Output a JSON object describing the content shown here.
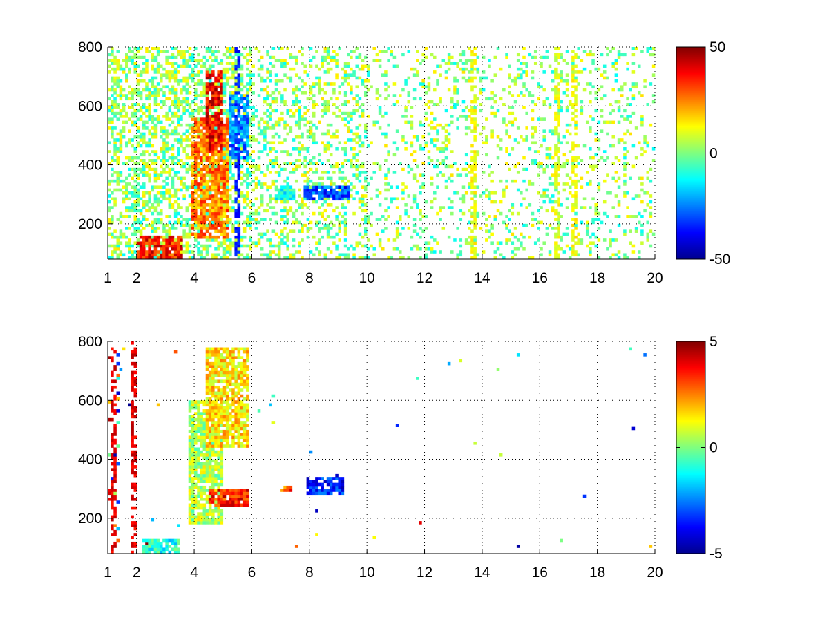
{
  "chart_data": [
    {
      "type": "heatmap",
      "title": "",
      "xlabel": "",
      "ylabel": "",
      "xlim": [
        1,
        20
      ],
      "ylim": [
        80,
        800
      ],
      "x_ticks": [
        1,
        2,
        4,
        6,
        8,
        10,
        12,
        14,
        16,
        18,
        20
      ],
      "y_ticks": [
        200,
        400,
        600,
        800
      ],
      "grid": true,
      "colormap": "jet",
      "colorbar": {
        "range": [
          -50,
          50
        ],
        "ticks": [
          50,
          0,
          -50
        ]
      },
      "missing_values_color": "#ffffff",
      "features": [
        {
          "kind": "blob",
          "x": [
            2.0,
            3.6
          ],
          "y": [
            80,
            160
          ],
          "value": 35
        },
        {
          "kind": "blob",
          "x": [
            3.9,
            5.2
          ],
          "y": [
            150,
            560
          ],
          "value": 25
        },
        {
          "kind": "blob",
          "x": [
            4.4,
            5.0
          ],
          "y": [
            440,
            720
          ],
          "value": 38
        },
        {
          "kind": "blob",
          "x": [
            5.2,
            5.9
          ],
          "y": [
            420,
            640
          ],
          "value": -25
        },
        {
          "kind": "blob",
          "x": [
            7.8,
            9.4
          ],
          "y": [
            280,
            330
          ],
          "value": -30
        },
        {
          "kind": "blob",
          "x": [
            6.8,
            7.5
          ],
          "y": [
            280,
            330
          ],
          "value": -10
        },
        {
          "kind": "stripe",
          "x": 13.7,
          "value": 12
        },
        {
          "kind": "stripe",
          "x": 16.6,
          "value": 10
        },
        {
          "kind": "stripe",
          "x": 17.2,
          "value": 12
        },
        {
          "kind": "stripe",
          "x": 5.5,
          "value": -35
        }
      ]
    },
    {
      "type": "heatmap",
      "title": "",
      "xlabel": "",
      "ylabel": "",
      "xlim": [
        1,
        20
      ],
      "ylim": [
        80,
        800
      ],
      "x_ticks": [
        1,
        2,
        4,
        6,
        8,
        10,
        12,
        14,
        16,
        18,
        20
      ],
      "y_ticks": [
        200,
        400,
        600,
        800
      ],
      "grid": true,
      "colormap": "jet",
      "colorbar": {
        "range": [
          -5,
          5
        ],
        "ticks": [
          5,
          0,
          -5
        ]
      },
      "missing_values_color": "#ffffff",
      "features": [
        {
          "kind": "blob",
          "x": [
            2.2,
            3.5
          ],
          "y": [
            80,
            130
          ],
          "value": -1
        },
        {
          "kind": "blob",
          "x": [
            3.8,
            5.0
          ],
          "y": [
            180,
            600
          ],
          "value": 0.5
        },
        {
          "kind": "blob",
          "x": [
            4.4,
            5.9
          ],
          "y": [
            440,
            780
          ],
          "value": 1.5
        },
        {
          "kind": "blob",
          "x": [
            4.5,
            5.9
          ],
          "y": [
            240,
            300
          ],
          "value": 3.5
        },
        {
          "kind": "blob",
          "x": [
            7.9,
            9.2
          ],
          "y": [
            285,
            340
          ],
          "value": -3.5
        },
        {
          "kind": "blob",
          "x": [
            7.0,
            7.4
          ],
          "y": [
            290,
            310
          ],
          "value": 3
        },
        {
          "kind": "stripe",
          "x": 1.2,
          "value": 4
        },
        {
          "kind": "stripe",
          "x": 1.9,
          "value": 4
        }
      ]
    }
  ]
}
